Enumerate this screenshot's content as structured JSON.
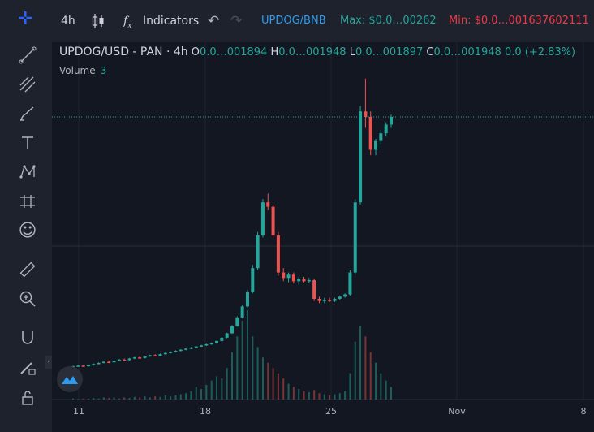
{
  "toolbar": {
    "interval": "4h",
    "indicators_label": "Indicators",
    "pair": "UPDOG/BNB",
    "max": "Max: $0.0…00262",
    "min": "Min: $0.0…001637602111",
    "colors": {
      "pair": "#2962ff",
      "max": "#26a69a",
      "min": "#f23645"
    }
  },
  "sidebar": {
    "tools": [
      "crosshair-icon",
      "trend-line-icon",
      "fib-icon",
      "brush-icon",
      "text-icon",
      "pattern-icon",
      "prediction-icon",
      "emoji-icon",
      "ruler-icon",
      "zoom-icon",
      "magnet-icon",
      "lock-pencil-icon",
      "lock-icon"
    ]
  },
  "legend": {
    "symbol": "UPDOG/USD - PAN · 4h",
    "o_label": "O",
    "o_value": "0.0…001894",
    "h_label": "H",
    "h_value": "0.0…001948",
    "l_label": "L",
    "l_value": "0.0…001897",
    "c_label": "C",
    "c_value": "0.0…001948",
    "change": "0.0 (+2.83%)",
    "volume_label": "Volume",
    "volume_value": "3"
  },
  "chart_data": {
    "type": "candlestick",
    "x_ticks": [
      "11",
      "18",
      "25",
      "Nov",
      "8"
    ],
    "y_scale": "relative price (no axis labels shown)",
    "up_color": "#26a69a",
    "down_color": "#ef5350",
    "candles": [
      [
        1.2,
        1.3,
        1.1,
        1.25
      ],
      [
        1.25,
        1.35,
        1.2,
        1.3
      ],
      [
        1.3,
        1.35,
        1.2,
        1.25
      ],
      [
        1.25,
        1.4,
        1.2,
        1.35
      ],
      [
        1.35,
        1.5,
        1.3,
        1.45
      ],
      [
        1.45,
        1.6,
        1.4,
        1.55
      ],
      [
        1.55,
        1.7,
        1.5,
        1.65
      ],
      [
        1.65,
        1.75,
        1.55,
        1.6
      ],
      [
        1.6,
        1.8,
        1.55,
        1.75
      ],
      [
        1.75,
        1.9,
        1.7,
        1.85
      ],
      [
        1.85,
        1.95,
        1.75,
        1.8
      ],
      [
        1.8,
        2.0,
        1.75,
        1.95
      ],
      [
        1.95,
        2.1,
        1.9,
        2.05
      ],
      [
        2.05,
        2.15,
        1.95,
        2.0
      ],
      [
        2.0,
        2.2,
        1.95,
        2.15
      ],
      [
        2.15,
        2.3,
        2.1,
        2.25
      ],
      [
        2.25,
        2.35,
        2.15,
        2.2
      ],
      [
        2.2,
        2.4,
        2.15,
        2.35
      ],
      [
        2.35,
        2.5,
        2.3,
        2.45
      ],
      [
        2.45,
        2.6,
        2.4,
        2.55
      ],
      [
        2.55,
        2.7,
        2.5,
        2.65
      ],
      [
        2.65,
        2.8,
        2.6,
        2.75
      ],
      [
        2.75,
        2.9,
        2.7,
        2.85
      ],
      [
        2.85,
        3.0,
        2.8,
        2.95
      ],
      [
        2.95,
        3.1,
        2.9,
        3.05
      ],
      [
        3.05,
        3.2,
        3.0,
        3.15
      ],
      [
        3.15,
        3.3,
        3.1,
        3.25
      ],
      [
        3.25,
        3.4,
        3.2,
        3.35
      ],
      [
        3.35,
        3.6,
        3.3,
        3.55
      ],
      [
        3.55,
        3.9,
        3.5,
        3.85
      ],
      [
        3.85,
        4.3,
        3.8,
        4.25
      ],
      [
        4.25,
        5.0,
        4.2,
        4.9
      ],
      [
        4.9,
        5.8,
        4.85,
        5.7
      ],
      [
        5.7,
        6.8,
        5.6,
        6.7
      ],
      [
        6.7,
        8.2,
        6.6,
        8.0
      ],
      [
        8.0,
        10.5,
        7.9,
        10.2
      ],
      [
        10.2,
        13.5,
        10.0,
        13.2
      ],
      [
        13.2,
        16.5,
        13.0,
        16.2
      ],
      [
        16.2,
        17.0,
        15.5,
        15.8
      ],
      [
        15.8,
        16.0,
        13.0,
        13.2
      ],
      [
        13.2,
        13.5,
        9.5,
        9.8
      ],
      [
        9.8,
        10.2,
        9.0,
        9.3
      ],
      [
        9.3,
        9.8,
        8.9,
        9.6
      ],
      [
        9.6,
        9.8,
        8.8,
        9.0
      ],
      [
        9.0,
        9.4,
        8.7,
        9.2
      ],
      [
        9.2,
        9.4,
        8.9,
        9.0
      ],
      [
        9.0,
        9.3,
        8.8,
        9.1
      ],
      [
        9.1,
        9.2,
        7.2,
        7.4
      ],
      [
        7.4,
        7.6,
        7.0,
        7.2
      ],
      [
        7.2,
        7.5,
        7.0,
        7.3
      ],
      [
        7.3,
        7.5,
        7.1,
        7.2
      ],
      [
        7.2,
        7.5,
        7.1,
        7.4
      ],
      [
        7.4,
        7.7,
        7.3,
        7.6
      ],
      [
        7.6,
        7.9,
        7.5,
        7.8
      ],
      [
        7.8,
        10.0,
        7.7,
        9.8
      ],
      [
        9.8,
        16.5,
        9.6,
        16.2
      ],
      [
        16.2,
        25.0,
        16.0,
        24.5
      ],
      [
        24.5,
        27.5,
        23.0,
        24.0
      ],
      [
        24.0,
        24.5,
        20.5,
        21.0
      ],
      [
        21.0,
        22.0,
        20.5,
        21.8
      ],
      [
        21.8,
        22.8,
        21.5,
        22.5
      ],
      [
        22.5,
        23.5,
        22.2,
        23.3
      ],
      [
        23.3,
        24.2,
        23.0,
        24.0
      ]
    ],
    "volumes": [
      1,
      0.5,
      1,
      0.8,
      1.5,
      1,
      2,
      1.5,
      2,
      1,
      2,
      1.5,
      2.5,
      2,
      3,
      2,
      3,
      2.5,
      4,
      3,
      4,
      5,
      6,
      8,
      12,
      10,
      14,
      18,
      22,
      20,
      30,
      45,
      60,
      75,
      85,
      60,
      50,
      40,
      35,
      30,
      25,
      20,
      15,
      12,
      10,
      8,
      7,
      9,
      6,
      5,
      4,
      5,
      6,
      8,
      25,
      55,
      70,
      60,
      45,
      35,
      25,
      18,
      12
    ],
    "price_line_level": 24.0
  }
}
